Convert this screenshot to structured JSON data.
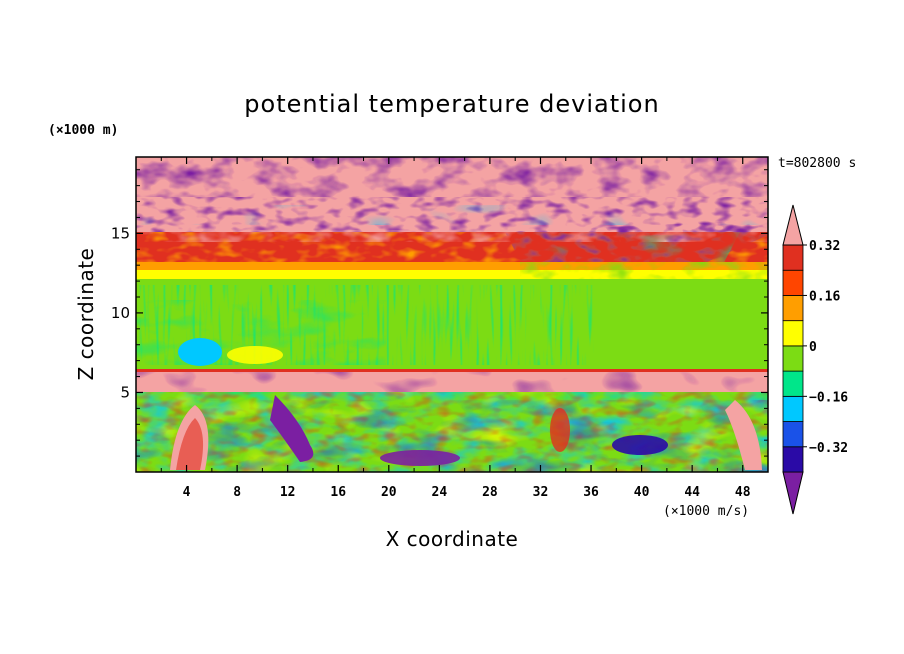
{
  "chart_data": {
    "type": "heatmap",
    "title": "potential temperature deviation",
    "xlabel": "X coordinate",
    "ylabel": "Z coordinate",
    "x_unit": "(×1000 m/s)",
    "y_unit": "(×1000 m)",
    "time_label": "t=802800 s",
    "xlim": [
      0,
      50
    ],
    "ylim": [
      0,
      19.8
    ],
    "x_ticks": [
      "4",
      "8",
      "12",
      "16",
      "20",
      "24",
      "28",
      "32",
      "36",
      "40",
      "44",
      "48"
    ],
    "y_ticks": [
      "5",
      "10",
      "15"
    ],
    "colorbar": {
      "levels": [
        -0.4,
        -0.32,
        -0.24,
        -0.16,
        -0.08,
        0,
        0.08,
        0.16,
        0.24,
        0.32,
        0.4
      ],
      "labels": [
        "0.32",
        "0.16",
        "0",
        "−0.16",
        "−0.32"
      ],
      "colors": [
        "#7b1fa2",
        "#2a0aa6",
        "#1a52e8",
        "#00c8ff",
        "#00e68a",
        "#7cdc14",
        "#ffff00",
        "#ff9e00",
        "#ff4500",
        "#e03020",
        "#f4a3a3"
      ]
    },
    "bands": [
      {
        "z": [
          18.5,
          19.8
        ],
        "description": "mixed pink / purple"
      },
      {
        "z": [
          15.5,
          18.5
        ],
        "description": "pink and purple, positive above 17"
      },
      {
        "z": [
          13.5,
          15.5
        ],
        "description": "red / orange noisy"
      },
      {
        "z": [
          12.0,
          13.5
        ],
        "description": "orange-yellow"
      },
      {
        "z": [
          6.3,
          12.0
        ],
        "description": "green, near zero"
      },
      {
        "z": [
          5.0,
          6.3
        ],
        "description": "pink / purple interface"
      },
      {
        "z": [
          0,
          5.0
        ],
        "description": "turbulent mix"
      }
    ]
  }
}
